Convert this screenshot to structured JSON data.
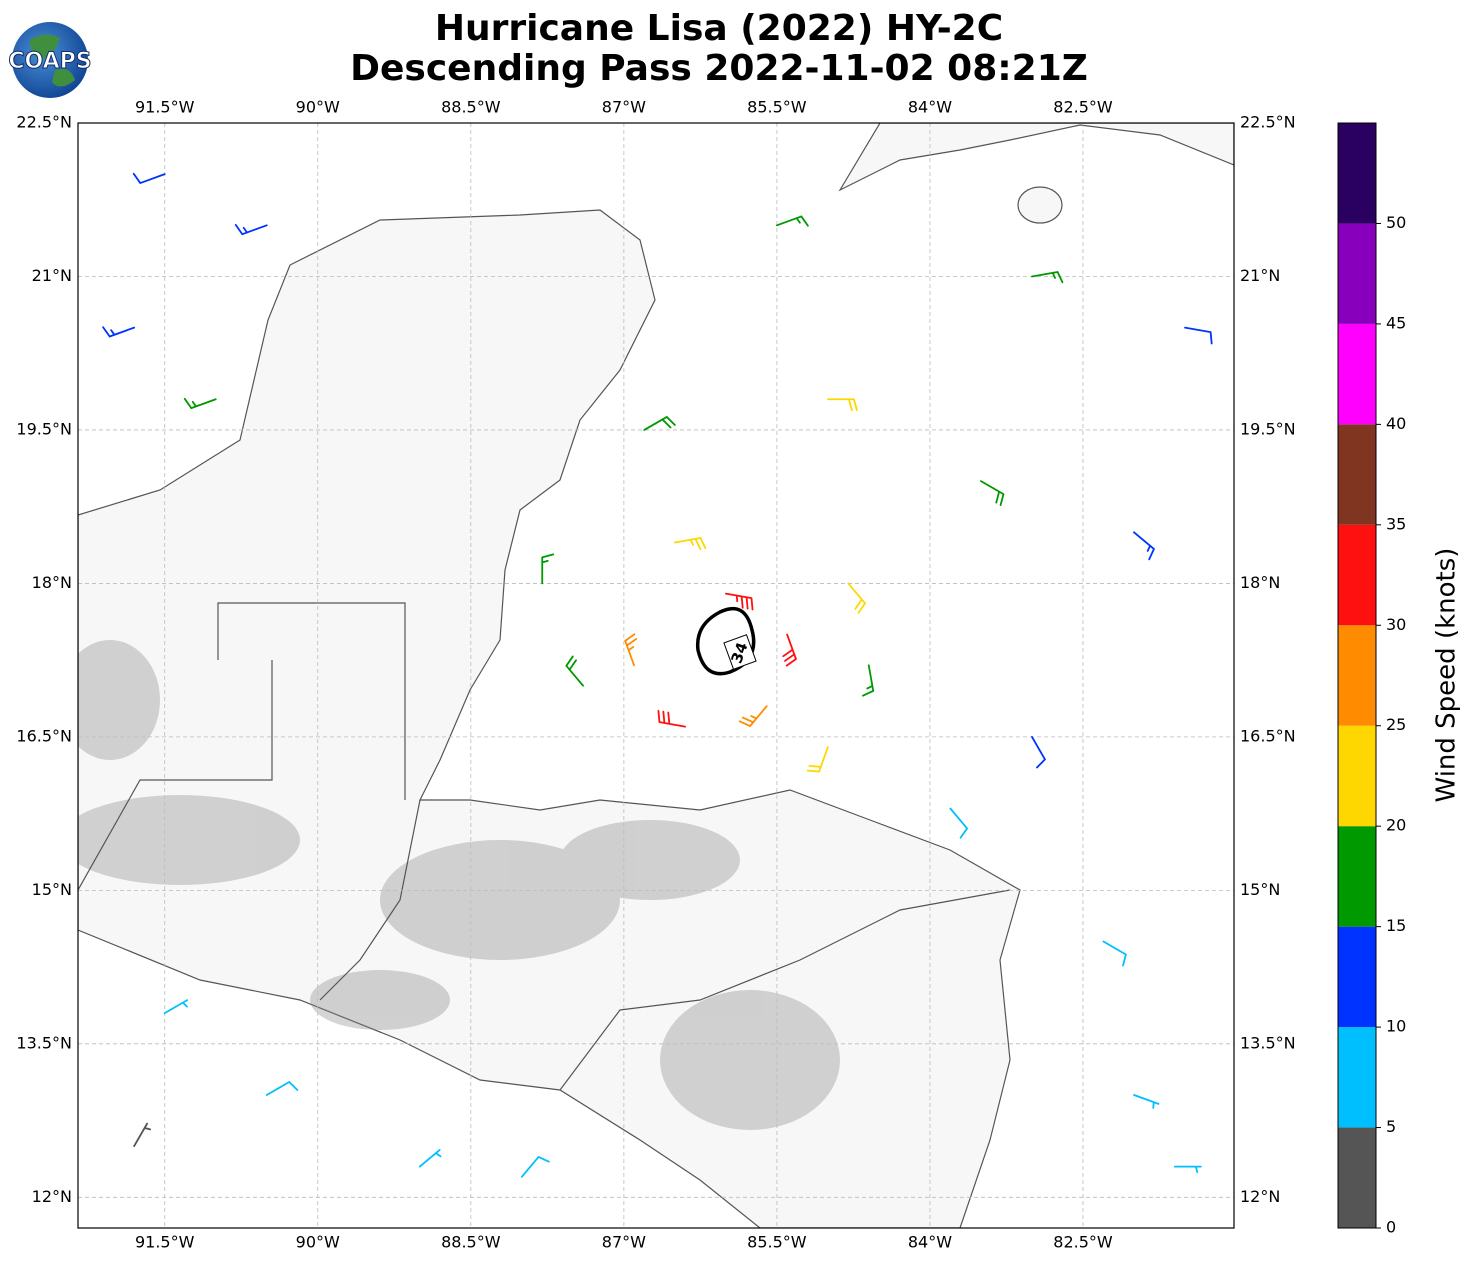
{
  "chart_data": {
    "type": "wind-barb-map",
    "title": "Hurricane Lisa (2022) HY-2C",
    "subtitle": "Descending Pass 2022-11-02 08:21Z",
    "logo": "COAPS",
    "xlim": [
      -92.35,
      -81.02
    ],
    "ylim": [
      11.7,
      22.5
    ],
    "xticks": [
      {
        "value": -91.5,
        "label": "91.5°W"
      },
      {
        "value": -90,
        "label": "90°W"
      },
      {
        "value": -88.5,
        "label": "88.5°W"
      },
      {
        "value": -87,
        "label": "87°W"
      },
      {
        "value": -85.5,
        "label": "85.5°W"
      },
      {
        "value": -84,
        "label": "84°W"
      },
      {
        "value": -82.5,
        "label": "82.5°W"
      }
    ],
    "yticks": [
      {
        "value": 12,
        "label": "12°N"
      },
      {
        "value": 13.5,
        "label": "13.5°N"
      },
      {
        "value": 15,
        "label": "15°N"
      },
      {
        "value": 16.5,
        "label": "16.5°N"
      },
      {
        "value": 18,
        "label": "18°N"
      },
      {
        "value": 19.5,
        "label": "19.5°N"
      },
      {
        "value": 21,
        "label": "21°N"
      },
      {
        "value": 22.5,
        "label": "22.5°N"
      }
    ],
    "grid": true,
    "contour_label": "34",
    "barbs": {
      "lon": [
        -86.0,
        -85.4,
        -85.6,
        -86.4,
        -86.9,
        -86.5,
        -84.8,
        -84.6,
        -85.0,
        -87.4,
        -87.8,
        -86.8,
        -85.0,
        -83.5,
        -82.0,
        -83.0,
        -83.8,
        -82.3,
        -82.0,
        -81.6,
        -85.5,
        -83.0,
        -81.5,
        -91.5,
        -90.5,
        -91.8,
        -91.0,
        -91.5,
        -90.5,
        -89.0,
        -91.8,
        -88.0
      ],
      "lat": [
        17.9,
        17.5,
        16.8,
        16.6,
        17.2,
        18.4,
        18.0,
        17.2,
        16.4,
        17.0,
        18.0,
        19.5,
        19.8,
        19.0,
        18.5,
        16.5,
        15.8,
        14.5,
        13.0,
        12.3,
        21.5,
        21.0,
        20.5,
        22.0,
        21.5,
        20.5,
        19.8,
        13.8,
        13.0,
        12.3,
        12.5,
        12.2
      ],
      "speed": [
        33,
        32,
        27,
        30,
        26,
        24,
        22,
        17,
        22,
        18,
        16,
        18,
        21,
        18,
        14,
        12,
        8,
        8,
        7,
        6,
        17,
        16,
        12,
        12,
        13,
        14,
        16,
        7,
        8,
        7,
        3,
        9
      ],
      "direction": [
        100,
        160,
        220,
        280,
        340,
        80,
        140,
        170,
        200,
        320,
        0,
        60,
        90,
        120,
        130,
        150,
        140,
        120,
        110,
        90,
        70,
        80,
        100,
        250,
        250,
        250,
        250,
        60,
        60,
        50,
        30,
        40
      ]
    },
    "colorbar": {
      "label": "Wind Speed (knots)",
      "lim": [
        0,
        55
      ],
      "bounds": [
        0,
        5,
        10,
        15,
        20,
        25,
        30,
        35,
        40,
        45,
        50,
        55
      ],
      "colors": [
        "#555555",
        "#00bfff",
        "#0033ff",
        "#009900",
        "#ffd700",
        "#ff8c00",
        "#ff1010",
        "#803520",
        "#ff00ff",
        "#8800bb",
        "#2a0060"
      ],
      "ticks": [
        0,
        5,
        10,
        15,
        20,
        25,
        30,
        35,
        40,
        45,
        50
      ]
    }
  }
}
